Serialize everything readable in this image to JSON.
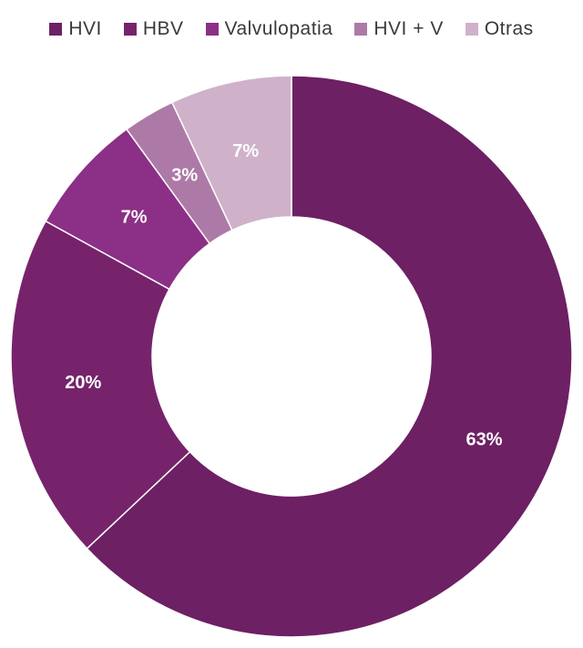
{
  "chart_data": {
    "type": "pie",
    "title": "",
    "legend_position": "top",
    "donut": true,
    "slices": [
      {
        "label": "HVI",
        "value": 63,
        "display": "63%",
        "color": "#6d2063"
      },
      {
        "label": "HBV",
        "value": 20,
        "display": "20%",
        "color": "#76236c"
      },
      {
        "label": "Valvulopatia",
        "value": 7,
        "display": "7%",
        "color": "#8c2f86"
      },
      {
        "label": "HVI + V",
        "value": 3,
        "display": "3%",
        "color": "#ad7aa7"
      },
      {
        "label": "Otras",
        "value": 7,
        "display": "7%",
        "color": "#cfb2ca"
      }
    ]
  }
}
